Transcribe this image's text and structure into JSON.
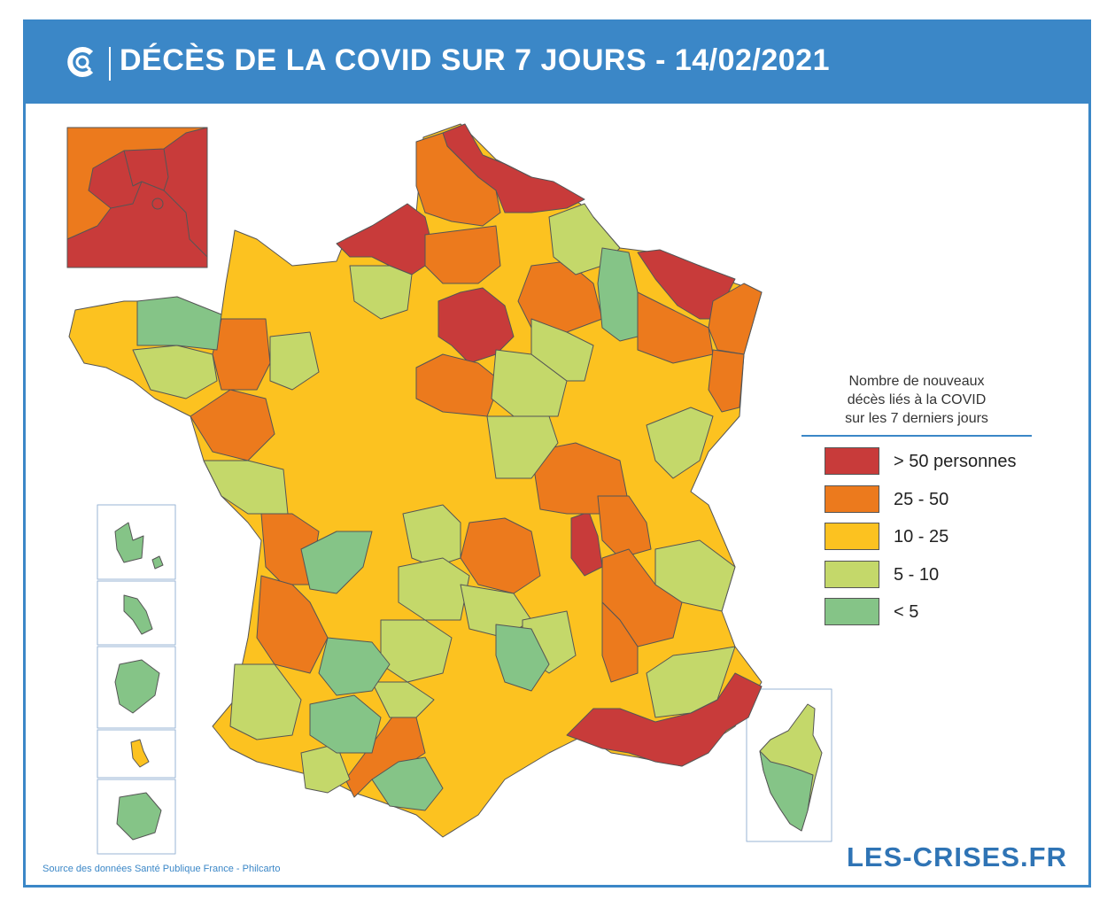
{
  "header": {
    "title": "DÉCÈS DE LA COVID SUR 7 JOURS - 14/02/2021",
    "logo_icon": "les-crises-logo-icon"
  },
  "legend": {
    "title_lines": [
      "Nombre de nouveaux",
      "décès liés à la COVID",
      "sur les 7 derniers jours"
    ],
    "items": [
      {
        "label": "> 50 personnes",
        "color": "#c83b3a"
      },
      {
        "label": "25 - 50",
        "color": "#ec7a1d"
      },
      {
        "label": "10 - 25",
        "color": "#fcc220"
      },
      {
        "label": "5 - 10",
        "color": "#c4d86a"
      },
      {
        "label": "< 5",
        "color": "#85c487"
      }
    ]
  },
  "colors": {
    "accent": "#3b87c7",
    "red": "#c83b3a",
    "orange": "#ec7a1d",
    "yellow": "#fcc220",
    "lightgreen": "#c4d86a",
    "green": "#85c487"
  },
  "footer": {
    "source": "Source des données Santé Publique France - Philcarto",
    "brand": "LES-CRISES.FR"
  }
}
